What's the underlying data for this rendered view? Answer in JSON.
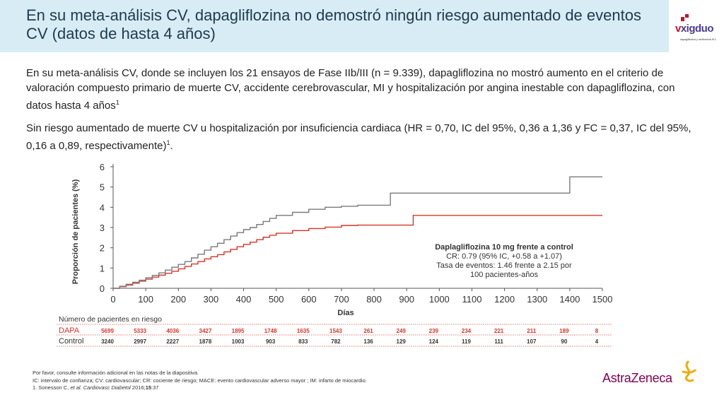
{
  "header": {
    "title": "En su meta-análisis CV, dapagliflozina no demostró ningún riesgo aumentado de eventos CV (datos de hasta 4 años)"
  },
  "logo": {
    "brand": "xigduo",
    "tagline": "dapagliflozina y metformina HCl"
  },
  "body": {
    "paragraph1": "En su meta-análisis CV, donde se incluyen los 21 ensayos de Fase IIb/III (n = 9.339), dapagliflozina no mostró aumento en el criterio de valoración compuesto primario de muerte CV, accidente cerebrovascular, MI y hospitalización por angina inestable con dapagliflozina, con datos hasta 4 años",
    "paragraph1_ref": "1",
    "paragraph2": "Sin riesgo aumentado de muerte CV u hospitalización por insuficiencia cardiaca (HR = 0,70, IC del 95%, 0,36 a 1,36 y FC = 0,37, IC del 95%, 0,16 a 0,89, respectivamente)",
    "paragraph2_ref": "1",
    "paragraph2_end": "."
  },
  "chart_data": {
    "type": "line",
    "xlabel": "Días",
    "ylabel": "Proporción de pacientes (%)",
    "xlim": [
      0,
      1500
    ],
    "ylim": [
      0,
      6
    ],
    "x_ticks": [
      "0",
      "100",
      "200",
      "300",
      "400",
      "500",
      "600",
      "700",
      "800",
      "900",
      "1000",
      "1100",
      "1200",
      "1300",
      "1400",
      "1500"
    ],
    "y_ticks": [
      "0",
      "1",
      "2",
      "3",
      "4",
      "5",
      "6"
    ],
    "grid": false,
    "series": [
      {
        "name": "DAPA",
        "color": "#d9342b",
        "step": true,
        "x": [
          0,
          20,
          40,
          60,
          80,
          100,
          120,
          140,
          160,
          180,
          200,
          220,
          240,
          260,
          280,
          300,
          320,
          340,
          360,
          380,
          400,
          420,
          440,
          460,
          480,
          500,
          550,
          600,
          650,
          700,
          750,
          800,
          850,
          920,
          1000,
          1200,
          1400,
          1500
        ],
        "y": [
          0,
          0.08,
          0.16,
          0.25,
          0.35,
          0.45,
          0.55,
          0.65,
          0.74,
          0.84,
          0.96,
          1.08,
          1.2,
          1.32,
          1.45,
          1.56,
          1.66,
          1.8,
          1.92,
          2.05,
          2.17,
          2.28,
          2.4,
          2.52,
          2.62,
          2.72,
          2.85,
          2.95,
          3.02,
          3.1,
          3.12,
          3.12,
          3.12,
          3.6,
          3.6,
          3.6,
          3.6,
          3.6
        ]
      },
      {
        "name": "Control",
        "color": "#7a7a7a",
        "step": true,
        "x": [
          0,
          20,
          40,
          60,
          80,
          100,
          120,
          140,
          160,
          180,
          200,
          220,
          240,
          260,
          280,
          300,
          320,
          340,
          360,
          380,
          400,
          420,
          440,
          460,
          480,
          500,
          550,
          600,
          650,
          700,
          750,
          800,
          850,
          900,
          1000,
          1100,
          1200,
          1300,
          1400,
          1500
        ],
        "y": [
          0,
          0.1,
          0.2,
          0.3,
          0.4,
          0.52,
          0.64,
          0.76,
          0.9,
          1.04,
          1.18,
          1.32,
          1.5,
          1.68,
          1.88,
          2.05,
          2.22,
          2.4,
          2.58,
          2.75,
          2.9,
          3.0,
          3.15,
          3.3,
          3.45,
          3.6,
          3.75,
          3.9,
          4.0,
          4.05,
          4.1,
          4.1,
          4.7,
          4.7,
          4.7,
          4.7,
          4.7,
          4.7,
          5.5,
          5.5
        ]
      }
    ],
    "annotation": {
      "title": "Daplagliflozina 10 mg frente a control",
      "line1": "CR: 0.79 (95% IC, +0.58 a +1.07)",
      "line2": "Tasa de eventos: 1.46 frente a 2.15 por",
      "line3": "100 pacientes-años"
    },
    "risk_table": {
      "title": "Número de pacientes en riesgo",
      "rows": [
        {
          "label": "DAPA",
          "color": "#d9342b",
          "values": [
            "5699",
            "5333",
            "4036",
            "3427",
            "1895",
            "1748",
            "1635",
            "1543",
            "261",
            "249",
            "239",
            "234",
            "221",
            "211",
            "189",
            "8"
          ]
        },
        {
          "label": "Control",
          "color": "#333333",
          "values": [
            "3240",
            "2997",
            "2227",
            "1878",
            "1003",
            "903",
            "833",
            "782",
            "136",
            "129",
            "124",
            "119",
            "111",
            "107",
            "90",
            "4"
          ]
        }
      ]
    }
  },
  "footer": {
    "note1": "Por favor, consulte información adicional en las notas de la diapositiva.",
    "note2": "IC: intervalo de confianza; CV: cardiovascular; CR: cociente de riesgo; MACE: evento cardiovascular adverso mayor ; IM: infarto de miocardio.",
    "ref_prefix": "1. Sonesson C, ",
    "ref_italic": "et al. Cardiovasc Diabetol",
    "ref_year": " 2016;",
    "ref_vol": "15",
    "ref_pages": ":37",
    "company": "AstraZeneca"
  }
}
